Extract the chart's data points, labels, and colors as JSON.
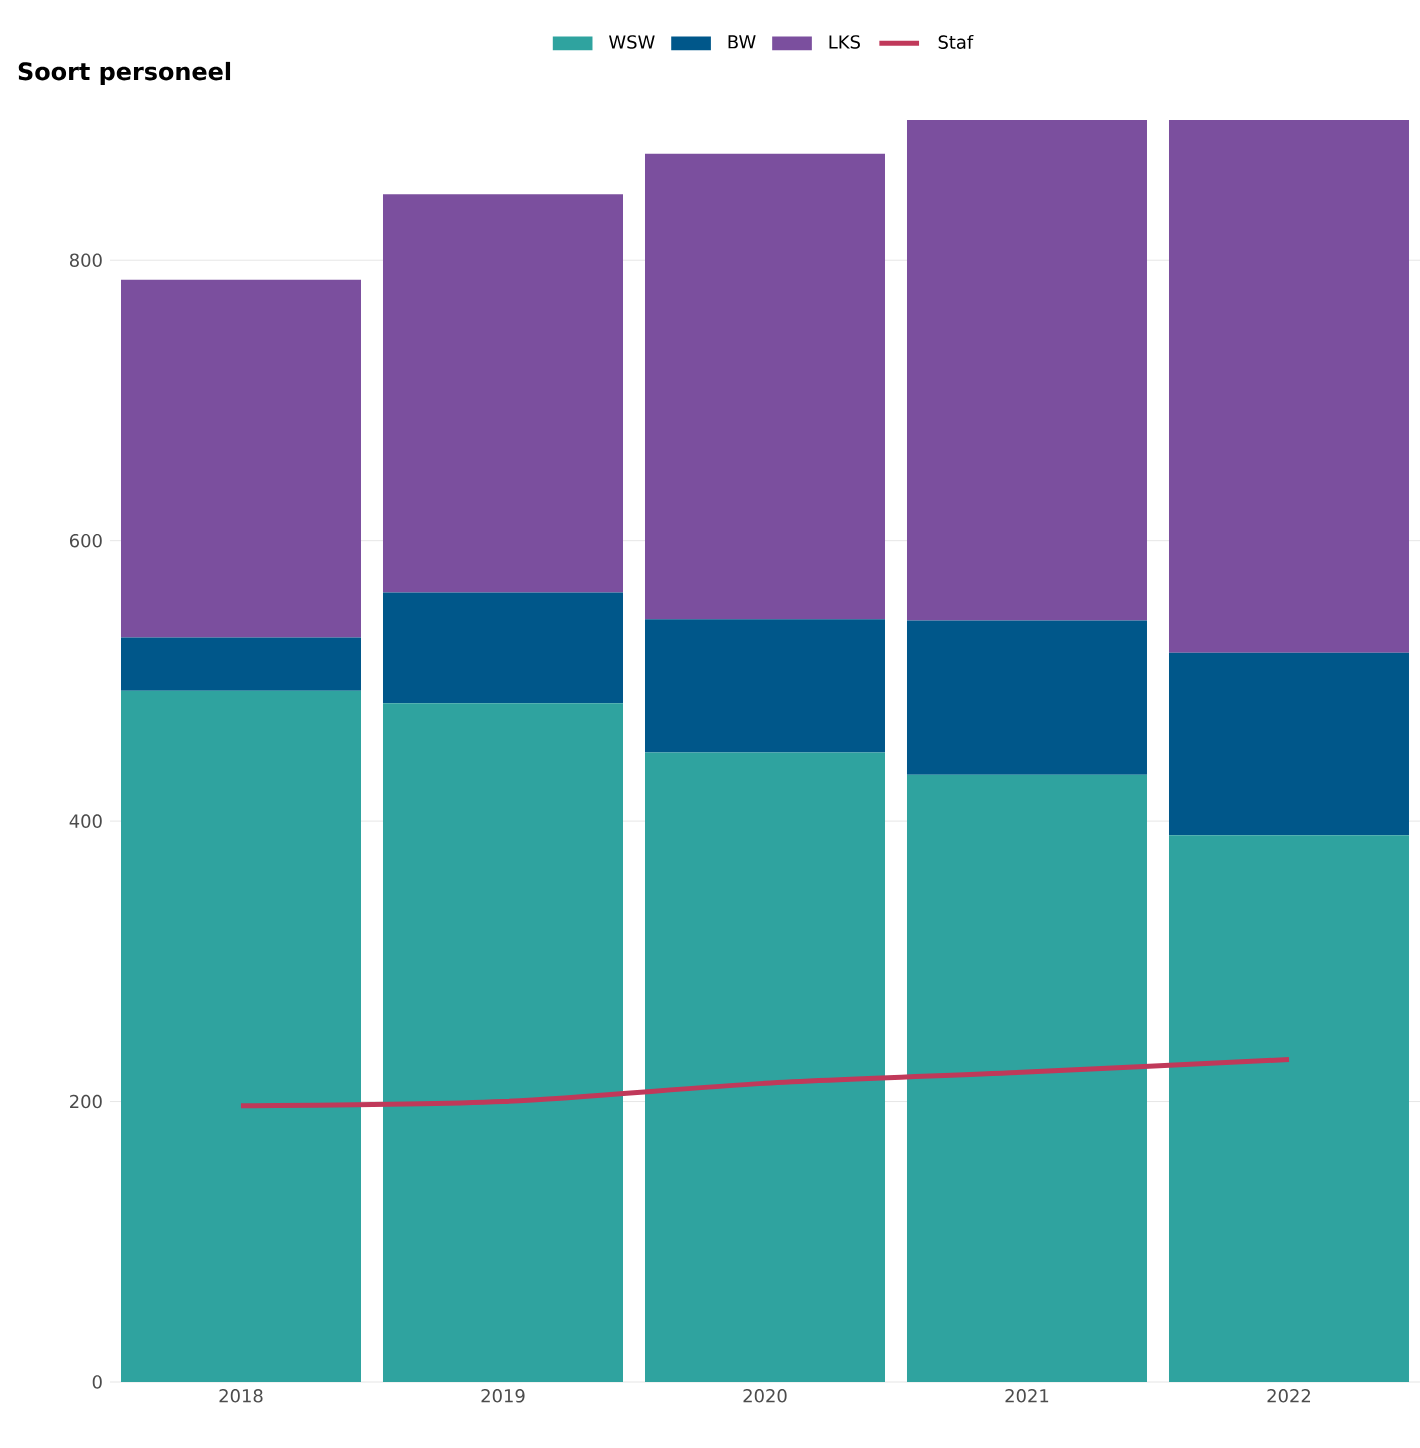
{
  "chart_data": {
    "type": "bar",
    "stacked": true,
    "title": "Soort personeel",
    "categories": [
      "2018",
      "2019",
      "2020",
      "2021",
      "2022"
    ],
    "series": [
      {
        "name": "WSW",
        "color": "#2fa39f",
        "values": [
          493,
          484,
          449,
          433,
          390
        ]
      },
      {
        "name": "BW",
        "color": "#00578a",
        "values": [
          38,
          79,
          95,
          110,
          130
        ]
      },
      {
        "name": "LKS",
        "color": "#7b4f9e",
        "values": [
          255,
          284,
          332,
          357,
          380
        ]
      },
      {
        "name": "Staf",
        "type": "line",
        "color": "#c0395a",
        "values": [
          197,
          200,
          213,
          221,
          230
        ]
      }
    ],
    "ylim": [
      0,
      900
    ],
    "yticks": [
      0,
      200,
      400,
      600,
      800
    ],
    "grid": "y",
    "legend": "top"
  }
}
